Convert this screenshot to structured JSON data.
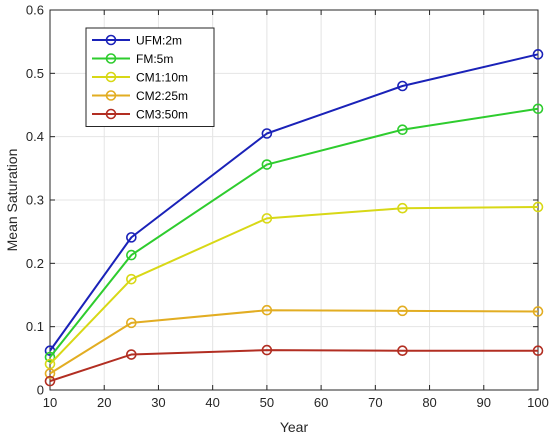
{
  "chart_data": {
    "type": "line",
    "title": "",
    "xlabel": "Year",
    "ylabel": "Mean Saturation",
    "x": [
      10,
      25,
      50,
      75,
      100
    ],
    "xlim": [
      10,
      100
    ],
    "ylim": [
      0,
      0.6
    ],
    "xticks": [
      10,
      20,
      30,
      40,
      50,
      60,
      70,
      80,
      90,
      100
    ],
    "yticks": [
      0,
      0.1,
      0.2,
      0.3,
      0.4,
      0.5,
      0.6
    ],
    "grid": true,
    "legend_position": "top-left",
    "marker": "open-circle",
    "series": [
      {
        "name": "UFM:2m",
        "color": "#1a22b8",
        "values": [
          0.062,
          0.241,
          0.405,
          0.48,
          0.53
        ]
      },
      {
        "name": "FM:5m",
        "color": "#2ecc2e",
        "values": [
          0.052,
          0.213,
          0.356,
          0.411,
          0.444
        ]
      },
      {
        "name": "CM1:10m",
        "color": "#d8d816",
        "values": [
          0.041,
          0.175,
          0.271,
          0.287,
          0.289
        ]
      },
      {
        "name": "CM2:25m",
        "color": "#e2ad22",
        "values": [
          0.026,
          0.106,
          0.126,
          0.125,
          0.124
        ]
      },
      {
        "name": "CM3:50m",
        "color": "#b22e22",
        "values": [
          0.014,
          0.056,
          0.063,
          0.062,
          0.062
        ]
      }
    ]
  }
}
